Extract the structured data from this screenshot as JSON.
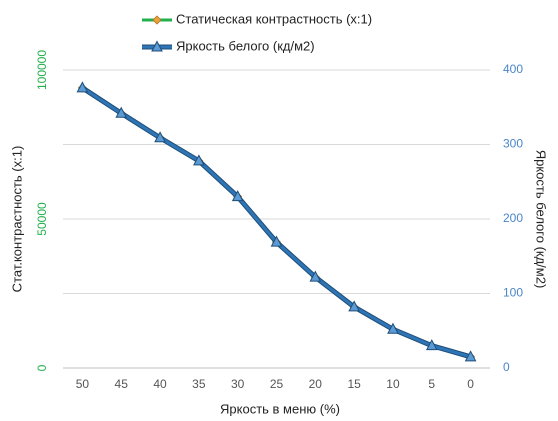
{
  "chart_data": {
    "type": "line",
    "x_label": "Яркость в меню (%)",
    "y_label": "Стат.контрастность  (x:1)",
    "y2_label": "Яркость белого (кд/м2)",
    "categories": [
      "50",
      "45",
      "40",
      "35",
      "30",
      "25",
      "20",
      "15",
      "10",
      "5",
      "0"
    ],
    "series": [
      {
        "name": "Статическая контрастность (x:1)",
        "color": "#22b04c",
        "marker_color": "#e8a33c",
        "marker": "diamond",
        "values": [
          94000,
          85500,
          77250,
          69500,
          57500,
          42250,
          30500,
          20500,
          13000,
          7500,
          3750
        ]
      },
      {
        "name": "Яркость белого (кд/м2)",
        "color": "#2e75b6",
        "marker_color": "#5b9bd5",
        "marker": "triangle",
        "axis": "y2",
        "values": [
          376,
          342,
          309,
          278,
          230,
          169,
          122,
          82,
          52,
          30,
          15
        ]
      }
    ],
    "ylim": [
      0,
      100000
    ],
    "yticks": [
      0,
      50000,
      100000
    ],
    "y_tick_color": "#22b04c",
    "y2lim": [
      0,
      400
    ],
    "y2ticks": [
      0,
      100,
      200,
      300,
      400
    ],
    "y2_tick_color": "#4a86c8",
    "grid": true
  }
}
